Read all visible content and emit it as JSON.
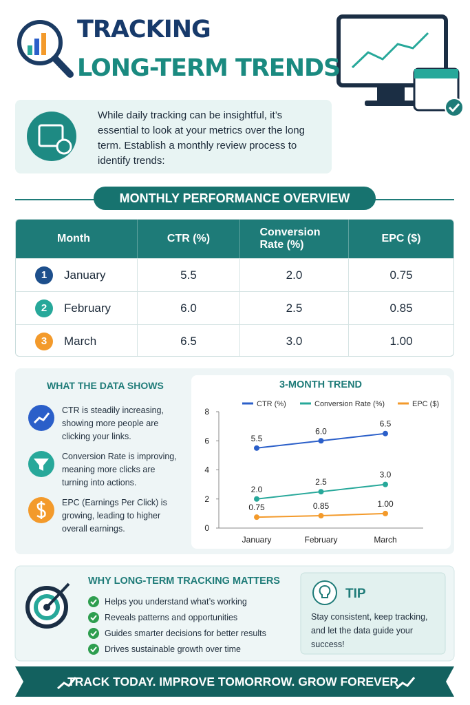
{
  "header": {
    "title_line1": "TRACKING",
    "title_line2": "LONG-TERM TRENDS"
  },
  "intro": {
    "text": "While daily tracking can be insightful, it’s essential to look at your metrics over the long term. Establish a monthly review process to identify trends:"
  },
  "table": {
    "title": "MONTHLY PERFORMANCE OVERVIEW",
    "columns": [
      "Month",
      "CTR (%)",
      "Conversion Rate (%)",
      "EPC ($)"
    ],
    "rows": [
      [
        "1",
        "January",
        "5.5",
        "2.0",
        "0.75"
      ],
      [
        "2",
        "February",
        "6.0",
        "2.5",
        "0.85"
      ],
      [
        "3",
        "March",
        "6.5",
        "3.0",
        "1.00"
      ]
    ]
  },
  "insights": {
    "title": "WHAT THE DATA SHOWS",
    "items": [
      "CTR is steadily increasing, showing more people are clicking your links.",
      "Conversion Rate is improving, meaning more clicks are turning into actions.",
      "EPC (Earnings Per Click) is growing, leading to higher overall earnings."
    ]
  },
  "chart_data": {
    "type": "line",
    "title": "3-MONTH TREND",
    "categories": [
      "January",
      "February",
      "March"
    ],
    "series": [
      {
        "name": "CTR (%)",
        "color": "#2b5fc9",
        "values": [
          5.5,
          6.0,
          6.5
        ],
        "value_labels": [
          "5.5",
          "6.0",
          "6.5"
        ]
      },
      {
        "name": "Conversion Rate (%)",
        "color": "#27a89a",
        "values": [
          2.0,
          2.5,
          3.0
        ],
        "value_labels": [
          "2.0",
          "2.5",
          "3.0"
        ]
      },
      {
        "name": "EPC ($)",
        "color": "#f39a2b",
        "values": [
          0.75,
          0.85,
          1.0
        ],
        "value_labels": [
          "0.75",
          "0.85",
          "1.00"
        ]
      }
    ],
    "ylim": [
      0,
      8
    ],
    "yticks": [
      0,
      2,
      4,
      6,
      8
    ],
    "legend": "top"
  },
  "why": {
    "title": "WHY LONG-TERM TRACKING MATTERS",
    "items": [
      "Helps you understand what’s working",
      "Reveals patterns and opportunities",
      "Guides smarter decisions for better results",
      "Drives sustainable growth over time"
    ]
  },
  "tip": {
    "title": "TIP",
    "text": "Stay consistent, keep tracking, and let the data guide your success!"
  },
  "footer": {
    "text": "TRACK TODAY. IMPROVE TOMORROW. GROW FOREVER."
  }
}
